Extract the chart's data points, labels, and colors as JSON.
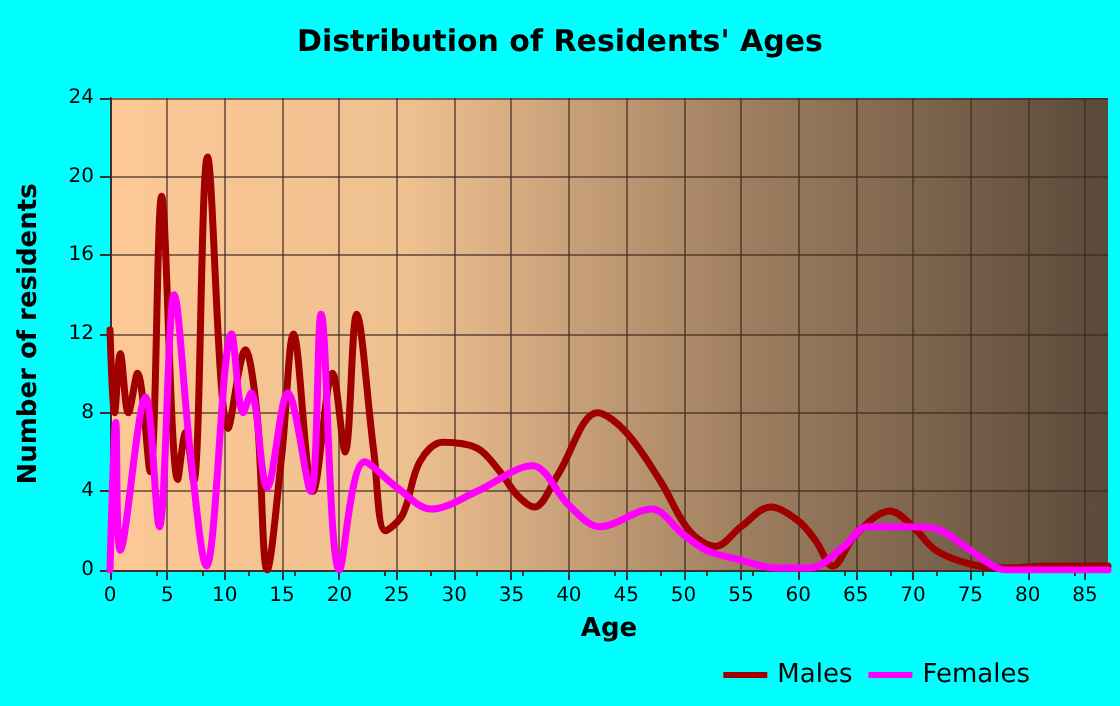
{
  "chart_data": {
    "type": "line",
    "title": "Distribution of Residents' Ages",
    "xlabel": "Age",
    "ylabel": "Number of residents",
    "xlim": [
      0,
      87
    ],
    "xticks": [
      0,
      5,
      10,
      15,
      20,
      25,
      30,
      35,
      40,
      45,
      50,
      55,
      60,
      65,
      70,
      75,
      80,
      85
    ],
    "ylim": [
      0,
      24
    ],
    "yticks": [
      0,
      4,
      8,
      12,
      16,
      20,
      24
    ],
    "grid": true,
    "legend": "bottom right",
    "marker": "none",
    "line_style": "solid",
    "series": [
      {
        "name": "Males",
        "color": "#a00000",
        "x": [
          0,
          0.4,
          0.9,
          1.6,
          2.4,
          3.5,
          4.5,
          5.9,
          6.6,
          7.3,
          8.5,
          10.3,
          11.8,
          12.8,
          13.7,
          15,
          16,
          17.7,
          19.4,
          20.5,
          21.5,
          23,
          24,
          25.5,
          27,
          29,
          32,
          34,
          35.5,
          37,
          39,
          42.5,
          45,
          48,
          50.5,
          52.8,
          55,
          57.6,
          60,
          61.5,
          63,
          65,
          68,
          70,
          72,
          75,
          78,
          82,
          87
        ],
        "values": [
          12.2,
          8,
          11,
          8,
          10,
          5,
          19,
          4.6,
          7,
          4.5,
          21,
          7.2,
          11.2,
          8,
          0,
          6,
          12,
          4,
          10,
          6,
          13,
          6,
          2,
          2.8,
          5.5,
          6.5,
          6.2,
          5,
          3.8,
          3.2,
          4.8,
          8,
          7,
          4.5,
          2,
          1.2,
          2.2,
          3.2,
          2.5,
          1.5,
          0.2,
          1.8,
          3,
          2.2,
          1,
          0.3,
          0.1,
          0.2,
          0.2
        ]
      },
      {
        "name": "Females",
        "color": "#ff00ff",
        "x": [
          0,
          0.5,
          0.9,
          3.1,
          4.3,
          5.6,
          7,
          8.4,
          10.6,
          11.6,
          12.3,
          13.7,
          15.5,
          17.5,
          18.4,
          20,
          22.2,
          25,
          28,
          32,
          36.8,
          40,
          42.7,
          47.2,
          50,
          52,
          55,
          58,
          61,
          64,
          66,
          70,
          72,
          75,
          77,
          78,
          80,
          87
        ],
        "values": [
          0,
          7.5,
          1,
          8.8,
          2.2,
          14,
          6,
          0.2,
          12,
          8,
          9,
          4.2,
          9,
          4,
          13,
          0,
          5.5,
          4.2,
          3.1,
          4,
          5.3,
          3.3,
          2.2,
          3.1,
          1.8,
          1,
          0.5,
          0.1,
          0.1,
          1.2,
          2.2,
          2.2,
          2.1,
          1,
          0.2,
          0,
          0,
          0
        ]
      }
    ]
  }
}
